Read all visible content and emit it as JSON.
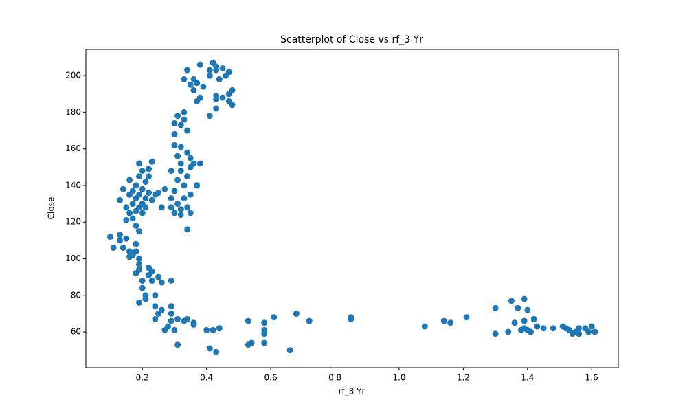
{
  "chart_data": {
    "type": "scatter",
    "title": "Scatterplot of Close vs rf_3 Yr",
    "xlabel": "rf_3 Yr",
    "ylabel": "Close",
    "color": "#1f77b4",
    "x": [
      0.1,
      0.11,
      0.13,
      0.13,
      0.14,
      0.15,
      0.16,
      0.16,
      0.17,
      0.18,
      0.18,
      0.19,
      0.19,
      0.19,
      0.18,
      0.2,
      0.2,
      0.21,
      0.19,
      0.21,
      0.22,
      0.22,
      0.23,
      0.23,
      0.24,
      0.24,
      0.24,
      0.25,
      0.25,
      0.26,
      0.26,
      0.27,
      0.28,
      0.29,
      0.29,
      0.29,
      0.29,
      0.3,
      0.31,
      0.31,
      0.33,
      0.34,
      0.36,
      0.36,
      0.4,
      0.41,
      0.42,
      0.43,
      0.44,
      0.53,
      0.53,
      0.54,
      0.58,
      0.58,
      0.58,
      0.58,
      0.61,
      0.66,
      0.68,
      0.72,
      0.85,
      0.85,
      1.08,
      1.14,
      1.16,
      1.21,
      1.3,
      1.3,
      1.34,
      1.35,
      1.36,
      1.37,
      1.38,
      1.39,
      1.39,
      1.39,
      1.4,
      1.4,
      1.41,
      1.42,
      1.43,
      1.45,
      1.48,
      1.51,
      1.52,
      1.53,
      1.54,
      1.55,
      1.56,
      1.56,
      1.58,
      1.59,
      1.6,
      1.61,
      0.13,
      0.14,
      0.15,
      0.15,
      0.16,
      0.16,
      0.16,
      0.17,
      0.17,
      0.17,
      0.18,
      0.18,
      0.18,
      0.18,
      0.19,
      0.19,
      0.19,
      0.19,
      0.19,
      0.2,
      0.2,
      0.2,
      0.2,
      0.21,
      0.21,
      0.21,
      0.22,
      0.22,
      0.22,
      0.23,
      0.23,
      0.24,
      0.25,
      0.26,
      0.27,
      0.29,
      0.29,
      0.29,
      0.3,
      0.3,
      0.31,
      0.31,
      0.32,
      0.32,
      0.32,
      0.33,
      0.33,
      0.34,
      0.34,
      0.34,
      0.35,
      0.35,
      0.36,
      0.37,
      0.38,
      0.3,
      0.3,
      0.3,
      0.31,
      0.31,
      0.32,
      0.32,
      0.32,
      0.33,
      0.33,
      0.34,
      0.34,
      0.35,
      0.35,
      0.33,
      0.34,
      0.35,
      0.36,
      0.36,
      0.37,
      0.37,
      0.38,
      0.38,
      0.39,
      0.41,
      0.41,
      0.41,
      0.42,
      0.43,
      0.43,
      0.43,
      0.43,
      0.43,
      0.44,
      0.45,
      0.45,
      0.46,
      0.47,
      0.47,
      0.48,
      0.48,
      0.47
    ],
    "values": [
      112,
      106,
      113,
      110,
      106,
      111,
      104,
      101,
      102,
      108,
      104,
      100,
      97,
      94,
      92,
      88,
      84,
      80,
      76,
      78,
      95,
      91,
      88,
      93,
      80,
      74,
      67,
      70,
      90,
      72,
      87,
      61,
      63,
      66,
      70,
      74,
      88,
      61,
      53,
      67,
      66,
      67,
      64,
      65,
      61,
      51,
      61,
      49,
      62,
      66,
      53,
      54,
      65,
      61,
      59,
      54,
      68,
      50,
      70,
      66,
      68,
      67,
      63,
      66,
      65,
      68,
      73,
      59,
      60,
      77,
      65,
      73,
      61,
      66,
      78,
      62,
      72,
      61,
      60,
      67,
      63,
      62,
      62,
      63,
      62,
      61,
      59,
      60,
      62,
      59,
      62,
      60,
      63,
      60,
      132,
      138,
      128,
      121,
      143,
      125,
      135,
      130,
      137,
      122,
      126,
      133,
      140,
      118,
      115,
      128,
      135,
      145,
      152,
      130,
      138,
      125,
      148,
      133,
      142,
      128,
      136,
      145,
      149,
      132,
      153,
      135,
      136,
      128,
      138,
      148,
      133,
      128,
      137,
      125,
      130,
      143,
      124,
      127,
      148,
      140,
      133,
      116,
      128,
      145,
      125,
      135,
      152,
      140,
      152,
      162,
      168,
      174,
      156,
      178,
      161,
      173,
      152,
      180,
      176,
      170,
      158,
      150,
      155,
      198,
      203,
      195,
      198,
      192,
      186,
      196,
      206,
      188,
      194,
      178,
      200,
      203,
      207,
      205,
      203,
      189,
      182,
      187,
      198,
      204,
      188,
      200,
      202,
      186,
      192,
      184,
      190
    ],
    "xlim": [
      0.024,
      1.683
    ],
    "ylim": [
      40.5,
      214.3
    ],
    "xticks": [
      0.2,
      0.4,
      0.6,
      0.8,
      {
        "value": 1,
        "label": "1.0"
      },
      1.2,
      1.4,
      1.6
    ],
    "yticks": [
      60,
      80,
      100,
      120,
      140,
      160,
      180,
      200
    ]
  }
}
